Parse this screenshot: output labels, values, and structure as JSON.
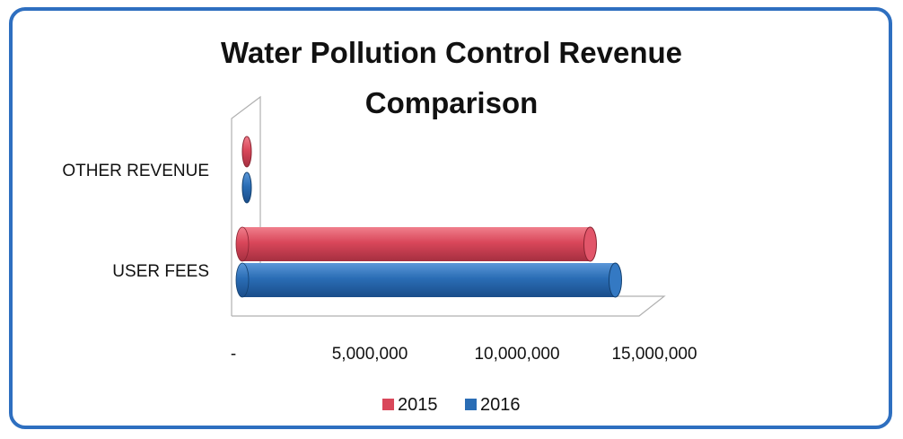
{
  "chart_data": {
    "type": "bar",
    "orientation": "horizontal",
    "title": "Water Pollution Control Revenue Comparison",
    "title_lines": [
      "Water Pollution Control Revenue",
      "Comparison"
    ],
    "categories": [
      "OTHER REVENUE",
      "USER FEES"
    ],
    "series": [
      {
        "name": "2015",
        "color": "#d9475a",
        "values": [
          20000,
          13150000
        ]
      },
      {
        "name": "2016",
        "color": "#2a6db5",
        "values": [
          20000,
          14100000
        ]
      }
    ],
    "xlim": [
      0,
      15000000
    ],
    "xticks": [
      {
        "value": 0,
        "label": "-"
      },
      {
        "value": 5000000,
        "label": "5,000,000"
      },
      {
        "value": 10000000,
        "label": "10,000,000"
      },
      {
        "value": 15000000,
        "label": "15,000,000"
      }
    ],
    "legend_position": "bottom",
    "grid": false
  }
}
